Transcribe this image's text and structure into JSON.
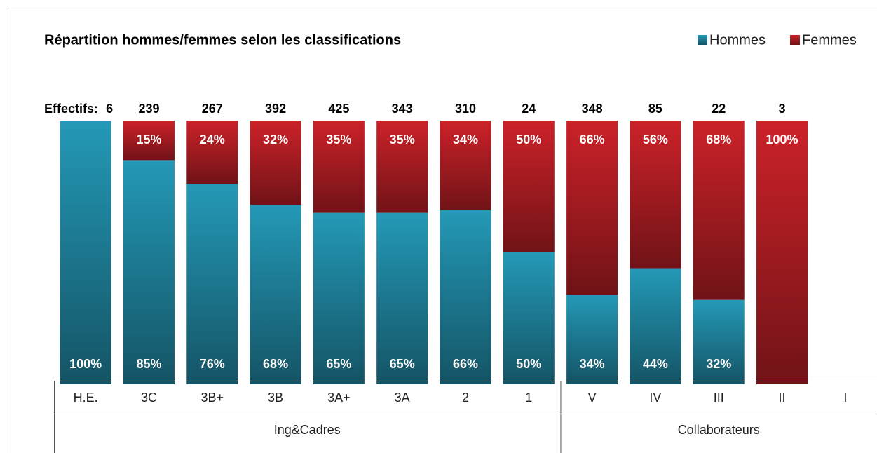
{
  "chart_data": {
    "type": "stacked_bar_100",
    "title": "Répartition hommes/femmes selon les classifications",
    "categories": [
      "H.E.",
      "3C",
      "3B+",
      "3B",
      "3A+",
      "3A",
      "2",
      "1",
      "V",
      "IV",
      "III",
      "II",
      "I"
    ],
    "groups": [
      "Ing&Cadres",
      "Collaborateurs"
    ],
    "effectifs": {
      "label": "Effectifs:",
      "values": [
        6,
        239,
        267,
        392,
        425,
        343,
        310,
        24,
        348,
        85,
        22,
        3,
        null
      ]
    },
    "series": [
      {
        "name": "Hommes",
        "color": "#2499b7",
        "values": [
          100,
          85,
          76,
          68,
          65,
          65,
          66,
          50,
          34,
          44,
          32,
          0,
          null
        ],
        "value_labels": [
          "100%",
          "85%",
          "76%",
          "68%",
          "65%",
          "65%",
          "66%",
          "50%",
          "34%",
          "44%",
          "32%",
          null,
          null
        ]
      },
      {
        "name": "Femmes",
        "color": "#cc2229",
        "values": [
          0,
          15,
          24,
          32,
          35,
          35,
          34,
          50,
          66,
          56,
          68,
          100,
          null
        ],
        "value_labels": [
          null,
          "15%",
          "24%",
          "32%",
          "35%",
          "35%",
          "34%",
          "50%",
          "66%",
          "56%",
          "68%",
          "100%",
          null
        ]
      }
    ],
    "ylim": [
      0,
      100
    ],
    "legend": "top-right"
  }
}
